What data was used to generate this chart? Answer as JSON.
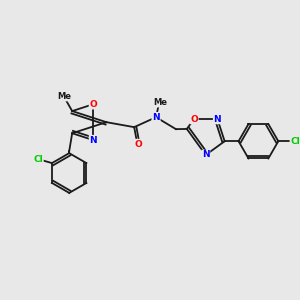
{
  "bg_color": "#e8e8e8",
  "bond_color": "#1a1a1a",
  "atom_colors": {
    "O": "#ff0000",
    "N": "#0000ff",
    "Cl": "#00cc00",
    "C": "#1a1a1a"
  }
}
